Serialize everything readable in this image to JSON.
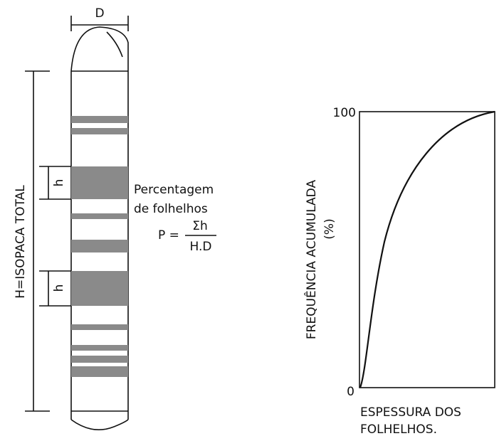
{
  "core": {
    "diameter_label": "D",
    "height_label": "H=ISOPACA TOTAL",
    "bed_labels": [
      "h",
      "h"
    ]
  },
  "annotation": {
    "lines": [
      "Percentagem",
      "de folhelhos"
    ],
    "formula": {
      "left": "P =",
      "numerator": "Σh",
      "denominator": "H.D"
    }
  },
  "plot": {
    "y_axis_label": "FREQUÊNCIA ACUMULADA",
    "y_axis_unit": "(%)",
    "y_top_label": "100",
    "origin_label": "0",
    "x_axis_label": [
      "ESPESSURA DOS",
      "FOLHELHOS."
    ]
  }
}
